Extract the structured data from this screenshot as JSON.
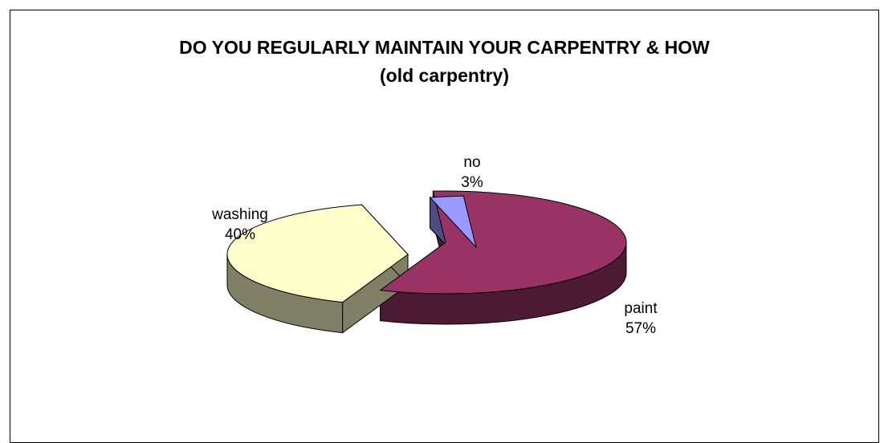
{
  "chart_data": {
    "type": "pie",
    "style": "3d-exploded",
    "title": "DO YOU REGULARLY MAINTAIN YOUR CARPENTRY & HOW",
    "subtitle": "(old carpentry)",
    "slices": [
      {
        "label": "paint",
        "value": 57,
        "value_label": "57%",
        "color": "#993366",
        "side_color": "#4D1A33"
      },
      {
        "label": "washing",
        "value": 40,
        "value_label": "40%",
        "color": "#FFFFCC",
        "side_color": "#808066"
      },
      {
        "label": "no",
        "value": 3,
        "value_label": "3%",
        "color": "#9999FF",
        "side_color": "#4D4D80"
      }
    ],
    "legend": "none",
    "data_labels": "category-and-percent"
  }
}
